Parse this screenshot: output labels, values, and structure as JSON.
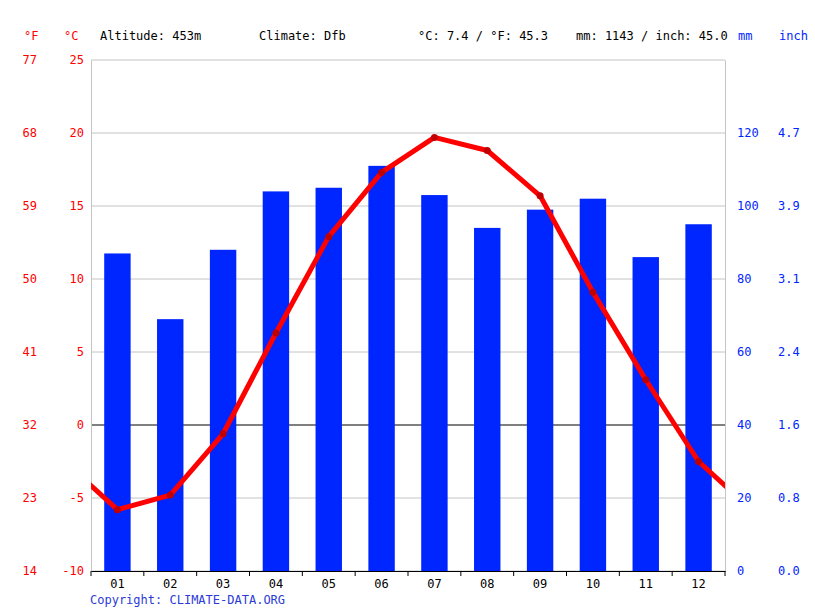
{
  "chart_data": {
    "type": "combo",
    "annotations": [
      "Altitude: 453m",
      "Climate: Dfb",
      "°C: 7.4 / °F: 45.3",
      "mm: 1143 / inch: 45.0",
      "Copyright: CLIMATE-DATA.ORG"
    ],
    "y_label": "°C",
    "y2_label": "mm",
    "y3_label": "°F",
    "y4_label": "inch",
    "categories": [
      "01",
      "02",
      "03",
      "04",
      "05",
      "06",
      "07",
      "08",
      "09",
      "10",
      "11",
      "12"
    ],
    "series": [
      {
        "type": "bar",
        "axis": "y2",
        "color": "#0026ff",
        "values": [
          87,
          69,
          88,
          104,
          105,
          111,
          103,
          94,
          99,
          102,
          86,
          95
        ]
      },
      {
        "type": "line",
        "color": "#ff0000",
        "marker": "circle",
        "values": [
          -5.8,
          -4.8,
          -0.6,
          6.3,
          12.9,
          17.3,
          19.7,
          18.8,
          15.7,
          9.1,
          3.1,
          -2.5
        ]
      }
    ],
    "ylim": [
      -10,
      25
    ],
    "yticks": [
      -10,
      -5,
      0,
      5,
      10,
      15,
      20,
      25
    ],
    "y2lim": [
      0,
      140
    ],
    "y2ticks": [
      0,
      20,
      40,
      60,
      80,
      100,
      120
    ],
    "y3lim": [
      14,
      77
    ],
    "y3ticks": [
      14,
      23,
      32,
      41,
      50,
      59,
      68,
      77
    ],
    "y4lim": [
      0,
      5.512
    ],
    "y4ticks": [
      {
        "value": 0,
        "label": "0.0"
      },
      {
        "value": 0.787,
        "label": "0.8"
      },
      {
        "value": 1.575,
        "label": "1.6"
      },
      {
        "value": 2.362,
        "label": "2.4"
      },
      {
        "value": 3.15,
        "label": "3.1"
      },
      {
        "value": 3.937,
        "label": "3.9"
      },
      {
        "value": 4.724,
        "label": "4.7"
      }
    ],
    "grid": true
  }
}
